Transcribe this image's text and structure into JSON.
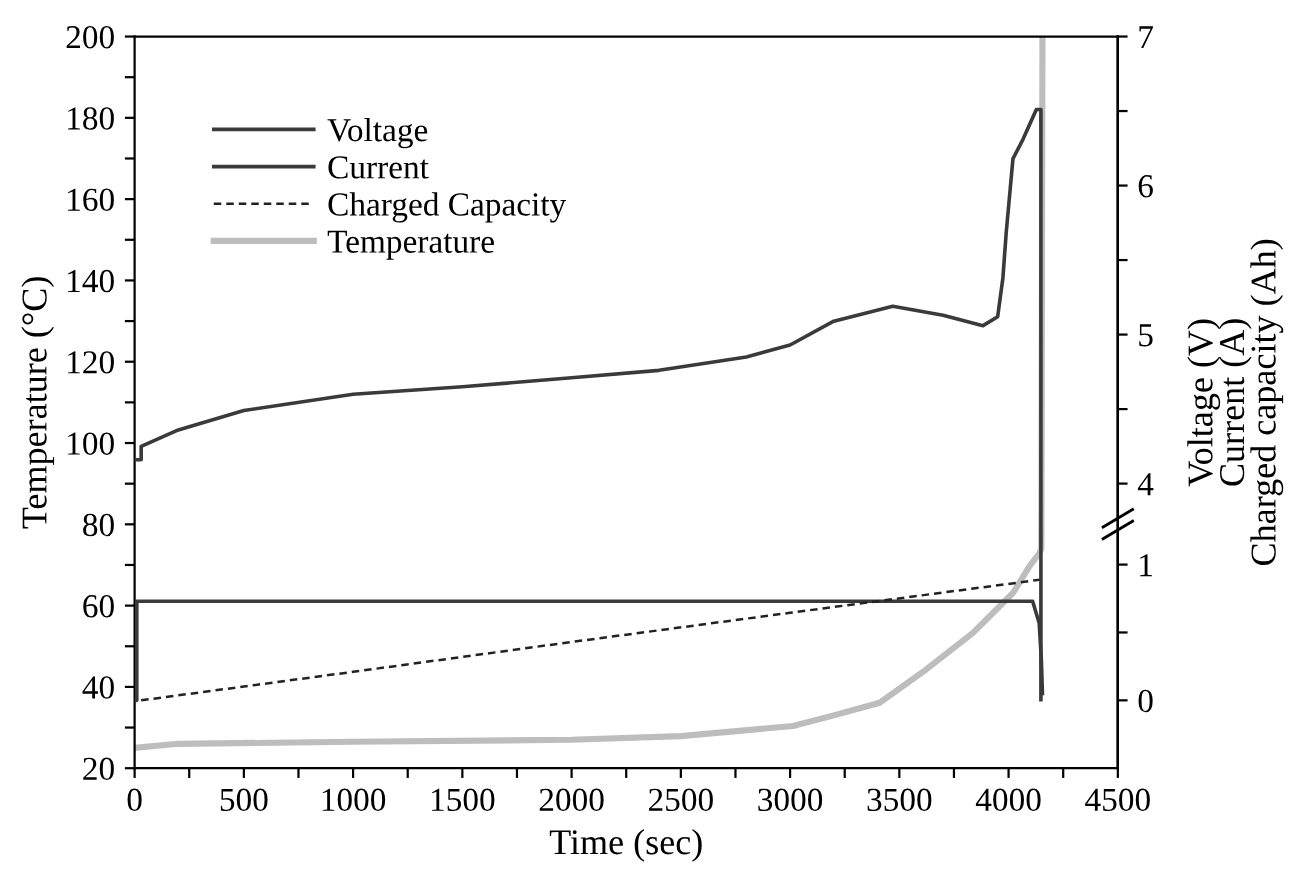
{
  "chart_data": {
    "type": "line",
    "xlabel": "Time (sec)",
    "ylabel": "Temperature (°C)",
    "y2label": "Voltage (V)\nCurrent (A)\nCharged capacity (Ah)",
    "legend": "top left",
    "grid": false,
    "xlim": [
      0,
      4500
    ],
    "xticks": [
      0,
      {
        "value": 250,
        "label": null
      },
      500,
      {
        "value": 750,
        "label": null
      },
      1000,
      {
        "value": 1250,
        "label": null
      },
      1500,
      {
        "value": 1750,
        "label": null
      },
      2000,
      {
        "value": 2250,
        "label": null
      },
      2500,
      {
        "value": 2750,
        "label": null
      },
      3000,
      {
        "value": 3250,
        "label": null
      },
      3500,
      {
        "value": 3750,
        "label": null
      },
      4000,
      {
        "value": 4250,
        "label": null
      },
      4500
    ],
    "ylim": [
      20,
      200
    ],
    "yticks": [
      20,
      {
        "value": 30,
        "label": null
      },
      40,
      {
        "value": 50,
        "label": null
      },
      60,
      {
        "value": 70,
        "label": null
      },
      80,
      {
        "value": 90,
        "label": null
      },
      100,
      {
        "value": 110,
        "label": null
      },
      120,
      {
        "value": 130,
        "label": null
      },
      140,
      {
        "value": 150,
        "label": null
      },
      160,
      {
        "value": 170,
        "label": null
      },
      180,
      {
        "value": 190,
        "label": null
      },
      200
    ],
    "y2lim": [
      -0.5,
      4.89
    ],
    "y2ticks": [
      0,
      {
        "value": 0.5,
        "label": null
      },
      1
    ],
    "y3lim": [
      2.09,
      7
    ],
    "y3ticks": [
      4,
      {
        "value": 4.5,
        "label": null
      },
      5,
      {
        "value": 5.5,
        "label": null
      },
      6,
      {
        "value": 6.5,
        "label": null
      },
      7
    ],
    "series": [
      {
        "name": "Voltage",
        "axis": "y3",
        "color": "#3a3a3a",
        "line_style": "solid",
        "x": [
          0,
          30,
          30,
          200,
          500,
          1000,
          1500,
          2000,
          2400,
          2800,
          3000,
          3200,
          3470,
          3700,
          3883,
          3950,
          3974,
          3989,
          4020,
          4066,
          4127,
          4148,
          4148
        ],
        "values": [
          4.16,
          4.16,
          4.25,
          4.36,
          4.49,
          4.6,
          4.65,
          4.71,
          4.76,
          4.85,
          4.93,
          5.09,
          5.19,
          5.13,
          5.06,
          5.12,
          5.38,
          5.68,
          6.18,
          6.31,
          6.51,
          6.51,
          2.55
        ]
      },
      {
        "name": "Current",
        "axis": "y2",
        "color": "#3a3a3a",
        "line_style": "solid",
        "x": [
          0,
          10,
          10,
          4110,
          4140,
          4150,
          4155
        ],
        "values": [
          0,
          0,
          0.73,
          0.73,
          0.57,
          0.3,
          0.05
        ]
      },
      {
        "name": "Charged Capacity",
        "axis": "y2",
        "color": "#222222",
        "line_style": "dashed",
        "x": [
          30,
          1000,
          2000,
          3000,
          4150
        ],
        "values": [
          0,
          0.21,
          0.43,
          0.645,
          0.89
        ]
      },
      {
        "name": "Temperature",
        "axis": "y",
        "color": "#bdbdbd",
        "line_style": "solid",
        "x": [
          0,
          200,
          1000,
          2000,
          2500,
          3013,
          3200,
          3410,
          3623,
          3837,
          4020,
          4096,
          4142,
          4150,
          4155
        ],
        "values": [
          25,
          26,
          26.5,
          27,
          27.9,
          30.4,
          33,
          36.1,
          44.3,
          53.3,
          63.1,
          69.7,
          73,
          74,
          200
        ]
      }
    ]
  }
}
